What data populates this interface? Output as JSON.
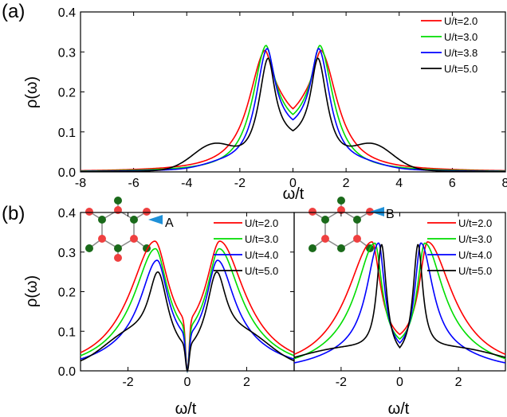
{
  "chart_data": [
    {
      "type": "line",
      "panel_label": "(a)",
      "xlabel": "ω/t",
      "ylabel": "ρ(ω)",
      "xlim": [
        -8,
        8
      ],
      "ylim": [
        0,
        0.4
      ],
      "xticks": [
        "-8",
        "-6",
        "-4",
        "-2",
        "0",
        "2",
        "4",
        "6",
        "8"
      ],
      "xtick_values": [
        -8,
        -6,
        -4,
        -2,
        0,
        2,
        4,
        6,
        8
      ],
      "yticks": [
        "0.0",
        "0.1",
        "0.2",
        "0.3",
        "0.4"
      ],
      "ytick_values": [
        0,
        0.1,
        0.2,
        0.3,
        0.4
      ],
      "legend_position": "top-right",
      "series": [
        {
          "name": "U/t=2.0",
          "color": "#ff0000",
          "params": {
            "peak": 1.1,
            "height": 0.265,
            "w_in": 0.45,
            "w_out": 0.75,
            "tail": 0.12,
            "sat": 0.9,
            "ht": 0.0,
            "tc": 2.8,
            "tw": 1.0,
            "dip": 0.0
          }
        },
        {
          "name": "U/t=3.0",
          "color": "#00dd00",
          "params": {
            "peak": 1.05,
            "height": 0.265,
            "w_in": 0.4,
            "w_out": 0.62,
            "tail": 0.11,
            "sat": 1.0,
            "ht": 0.0,
            "tc": 2.8,
            "tw": 1.0,
            "dip": 0.0
          }
        },
        {
          "name": "U/t=3.8",
          "color": "#0000ff",
          "params": {
            "peak": 1.0,
            "height": 0.252,
            "w_in": 0.37,
            "w_out": 0.52,
            "tail": 0.1,
            "sat": 1.05,
            "ht": 0.01,
            "tc": 2.7,
            "tw": 1.0,
            "dip": 0.0
          }
        },
        {
          "name": "U/t=5.0",
          "color": "#000000",
          "params": {
            "peak": 0.95,
            "height": 0.225,
            "w_in": 0.32,
            "w_out": 0.42,
            "tail": 0.08,
            "sat": 1.2,
            "ht": 0.06,
            "tc": 3.0,
            "tw": 1.1,
            "dip": 0.0
          }
        }
      ]
    },
    {
      "type": "line",
      "panel_label": "(b)",
      "xlabel": "ω/t",
      "ylabel": "ρ(ω)",
      "annotation": "A",
      "xlim": [
        -3.6,
        3.6
      ],
      "ylim": [
        0,
        0.4
      ],
      "xticks": [
        "-2",
        "0",
        "2"
      ],
      "xtick_values": [
        -2,
        0,
        2
      ],
      "yticks": [
        "0.0",
        "0.1",
        "0.2",
        "0.3",
        "0.4"
      ],
      "ytick_values": [
        0,
        0.1,
        0.2,
        0.3,
        0.4
      ],
      "legend_position": "top-right",
      "series": [
        {
          "name": "U/t=2.0",
          "color": "#ff0000",
          "params": {
            "peak": 1.1,
            "height": 0.26,
            "w_in": 0.55,
            "w_out": 0.95,
            "tail": 0.07,
            "sat": 2.5,
            "ht": 0.0,
            "tc": 2.8,
            "tw": 1.0,
            "dip": 0.012
          }
        },
        {
          "name": "U/t=3.0",
          "color": "#00dd00",
          "params": {
            "peak": 1.08,
            "height": 0.25,
            "w_in": 0.5,
            "w_out": 0.82,
            "tail": 0.06,
            "sat": 2.7,
            "ht": 0.0,
            "tc": 2.8,
            "tw": 1.0,
            "dip": 0.012
          }
        },
        {
          "name": "U/t=4.0",
          "color": "#0000ff",
          "params": {
            "peak": 1.02,
            "height": 0.23,
            "w_in": 0.45,
            "w_out": 0.68,
            "tail": 0.05,
            "sat": 2.9,
            "ht": 0.0,
            "tc": 2.8,
            "tw": 1.0,
            "dip": 0.012
          }
        },
        {
          "name": "U/t=5.0",
          "color": "#000000",
          "params": {
            "peak": 0.98,
            "height": 0.193,
            "w_in": 0.4,
            "w_out": 0.4,
            "tail": 0.03,
            "sat": 3.2,
            "ht": 0.055,
            "tc": 2.0,
            "tw": 1.2,
            "dip": 0.012
          }
        }
      ]
    },
    {
      "type": "line",
      "panel_label": "",
      "xlabel": "ω/t",
      "ylabel": "",
      "annotation": "B",
      "xlim": [
        -3.6,
        3.6
      ],
      "ylim": [
        0,
        0.4
      ],
      "xticks": [
        "-2",
        "0",
        "2"
      ],
      "xtick_values": [
        -2,
        0,
        2
      ],
      "yticks": [],
      "ytick_values": [],
      "legend_position": "top-right",
      "series": [
        {
          "name": "U/t=2.0",
          "color": "#ff0000",
          "params": {
            "peak": 0.95,
            "height": 0.267,
            "w_in": 0.35,
            "w_out": 0.95,
            "tail": 0.06,
            "sat": 2.5,
            "ht": 0.0,
            "tc": 2.8,
            "tw": 1.0,
            "dip": 0.0
          }
        },
        {
          "name": "U/t=3.0",
          "color": "#00dd00",
          "params": {
            "peak": 0.85,
            "height": 0.273,
            "w_in": 0.3,
            "w_out": 0.75,
            "tail": 0.05,
            "sat": 2.7,
            "ht": 0.0,
            "tc": 2.8,
            "tw": 1.0,
            "dip": 0.0
          }
        },
        {
          "name": "U/t=4.0",
          "color": "#0000ff",
          "params": {
            "peak": 0.72,
            "height": 0.283,
            "w_in": 0.25,
            "w_out": 0.5,
            "tail": 0.04,
            "sat": 2.9,
            "ht": 0.0,
            "tc": 2.8,
            "tw": 1.0,
            "dip": 0.0
          }
        },
        {
          "name": "U/t=5.0",
          "color": "#000000",
          "params": {
            "peak": 0.62,
            "height": 0.275,
            "w_in": 0.2,
            "w_out": 0.2,
            "tail": 0.0,
            "sat": 3.0,
            "ht": 0.055,
            "tc": 1.8,
            "tw": 2.5,
            "dip": 0.0
          }
        }
      ]
    }
  ]
}
